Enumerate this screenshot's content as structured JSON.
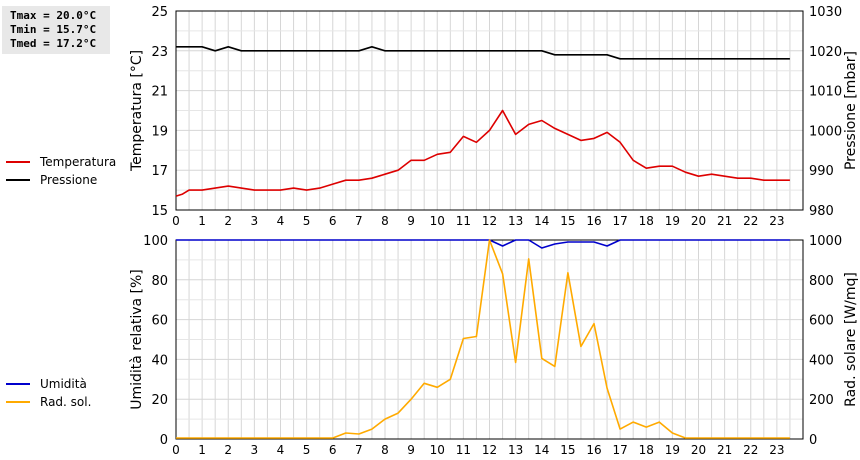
{
  "stats": {
    "tmax": "Tmax = 20.0°C",
    "tmin": "Tmin = 15.7°C",
    "tmed": "Tmed = 17.2°C"
  },
  "chart_data": [
    {
      "type": "line",
      "xlim": [
        0,
        24
      ],
      "x_ticks": [
        "0",
        "0.5",
        "1",
        "1.5",
        "2",
        "2.5",
        "3",
        "3.5",
        "4",
        "4.5",
        "5",
        "5.5",
        "6",
        "6.5",
        "7",
        "7.5",
        "8",
        "8.5",
        "9",
        "9.5",
        "10",
        "10.5",
        "11",
        "11.5",
        "12",
        "12.5",
        "13",
        "13.5",
        "14",
        "14.5",
        "15",
        "15.5",
        "16",
        "16.5",
        "17",
        "17.5",
        "18",
        "18.5",
        "19",
        "19.5",
        "20",
        "20.5",
        "21",
        "21.5",
        "22",
        "22.5",
        "23",
        "23.5"
      ],
      "x_labels": [
        "0",
        "1",
        "2",
        "3",
        "4",
        "5",
        "6",
        "7",
        "8",
        "9",
        "10",
        "11",
        "12",
        "13",
        "14",
        "15",
        "16",
        "17",
        "18",
        "19",
        "20",
        "21",
        "22",
        "23"
      ],
      "ylabel_left": "Temperatura [°C]",
      "ylim_left": [
        15,
        25
      ],
      "yticks_left": [
        "15",
        "17",
        "19",
        "21",
        "23",
        "25"
      ],
      "ylabel_right": "Pressione [mbar]",
      "ylim_right": [
        980,
        1030
      ],
      "yticks_right": [
        "980",
        "990",
        "1000",
        "1010",
        "1020",
        "1030"
      ],
      "grid": true,
      "series": [
        {
          "name": "Temperatura",
          "axis": "left",
          "color": "#dd0000",
          "x": [
            0,
            0.25,
            0.5,
            1,
            1.5,
            2,
            2.5,
            3,
            3.5,
            4,
            4.5,
            5,
            5.5,
            6,
            6.5,
            7,
            7.5,
            8,
            8.5,
            9,
            9.5,
            10,
            10.5,
            11,
            11.5,
            12,
            12.5,
            13,
            13.5,
            14,
            14.5,
            15,
            15.5,
            16,
            16.5,
            17,
            17.5,
            18,
            18.5,
            19,
            19.5,
            20,
            20.5,
            21,
            21.5,
            22,
            22.5,
            23,
            23.5
          ],
          "values": [
            15.7,
            15.8,
            16.0,
            16.0,
            16.1,
            16.2,
            16.1,
            16.0,
            16.0,
            16.0,
            16.1,
            16.0,
            16.1,
            16.3,
            16.5,
            16.5,
            16.6,
            16.8,
            17.0,
            17.5,
            17.5,
            17.8,
            17.9,
            18.7,
            18.4,
            19.0,
            20.0,
            18.8,
            19.3,
            19.5,
            19.1,
            18.8,
            18.5,
            18.6,
            18.9,
            18.4,
            17.5,
            17.1,
            17.2,
            17.2,
            16.9,
            16.7,
            16.8,
            16.7,
            16.6,
            16.6,
            16.5,
            16.5,
            16.5
          ]
        },
        {
          "name": "Pressione",
          "axis": "right",
          "color": "#000000",
          "x": [
            0,
            0.5,
            1,
            1.5,
            2,
            2.5,
            3,
            3.5,
            4,
            4.5,
            5,
            5.5,
            6,
            6.5,
            7,
            7.5,
            8,
            8.5,
            9,
            9.5,
            10,
            10.5,
            11,
            11.5,
            12,
            12.5,
            13,
            13.5,
            14,
            14.5,
            15,
            15.5,
            16,
            16.5,
            17,
            17.5,
            18,
            18.5,
            19,
            19.5,
            20,
            20.5,
            21,
            21.5,
            22,
            22.5,
            23,
            23.5
          ],
          "values": [
            1021,
            1021,
            1021,
            1020,
            1021,
            1020,
            1020,
            1020,
            1020,
            1020,
            1020,
            1020,
            1020,
            1020,
            1020,
            1021,
            1020,
            1020,
            1020,
            1020,
            1020,
            1020,
            1020,
            1020,
            1020,
            1020,
            1020,
            1020,
            1020,
            1019,
            1019,
            1019,
            1019,
            1019,
            1018,
            1018,
            1018,
            1018,
            1018,
            1018,
            1018,
            1018,
            1018,
            1018,
            1018,
            1018,
            1018,
            1018
          ]
        }
      ]
    },
    {
      "type": "line",
      "xlim": [
        0,
        24
      ],
      "ylabel_left": "Umidità relativa [%]",
      "ylim_left": [
        0,
        100
      ],
      "yticks_left": [
        "0",
        "20",
        "40",
        "60",
        "80",
        "100"
      ],
      "ylabel_right": "Rad. solare [W/mq]",
      "ylim_right": [
        0,
        1000
      ],
      "yticks_right": [
        "0",
        "200",
        "400",
        "600",
        "800",
        "1000"
      ],
      "grid": true,
      "series": [
        {
          "name": "Umidità",
          "axis": "left",
          "color": "#0000cc",
          "x": [
            0,
            12,
            12.5,
            13,
            13.5,
            14,
            14.5,
            15,
            15.5,
            16,
            16.5,
            17,
            23.5
          ],
          "values": [
            100,
            100,
            97,
            100,
            100,
            96,
            98,
            99,
            99,
            99,
            97,
            100,
            100
          ]
        },
        {
          "name": "Rad. sol.",
          "axis": "right",
          "color": "#ffaa00",
          "x": [
            0,
            0.5,
            1,
            1.5,
            2,
            2.5,
            3,
            3.5,
            4,
            4.5,
            5,
            5.5,
            6,
            6.5,
            7,
            7.5,
            8,
            8.5,
            9,
            9.5,
            10,
            10.5,
            11,
            11.5,
            12,
            12.5,
            13,
            13.5,
            14,
            14.5,
            15,
            15.5,
            16,
            16.5,
            17,
            17.5,
            18,
            18.5,
            19,
            19.5,
            20,
            20.5,
            21,
            21.5,
            22,
            22.5,
            23,
            23.5
          ],
          "values": [
            5,
            5,
            5,
            5,
            5,
            5,
            5,
            5,
            5,
            5,
            5,
            5,
            5,
            30,
            25,
            50,
            100,
            130,
            200,
            280,
            260,
            300,
            505,
            515,
            1000,
            830,
            385,
            905,
            405,
            365,
            835,
            465,
            580,
            255,
            50,
            85,
            60,
            85,
            30,
            5,
            5,
            5,
            5,
            5,
            5,
            5,
            5,
            5
          ]
        }
      ]
    }
  ]
}
